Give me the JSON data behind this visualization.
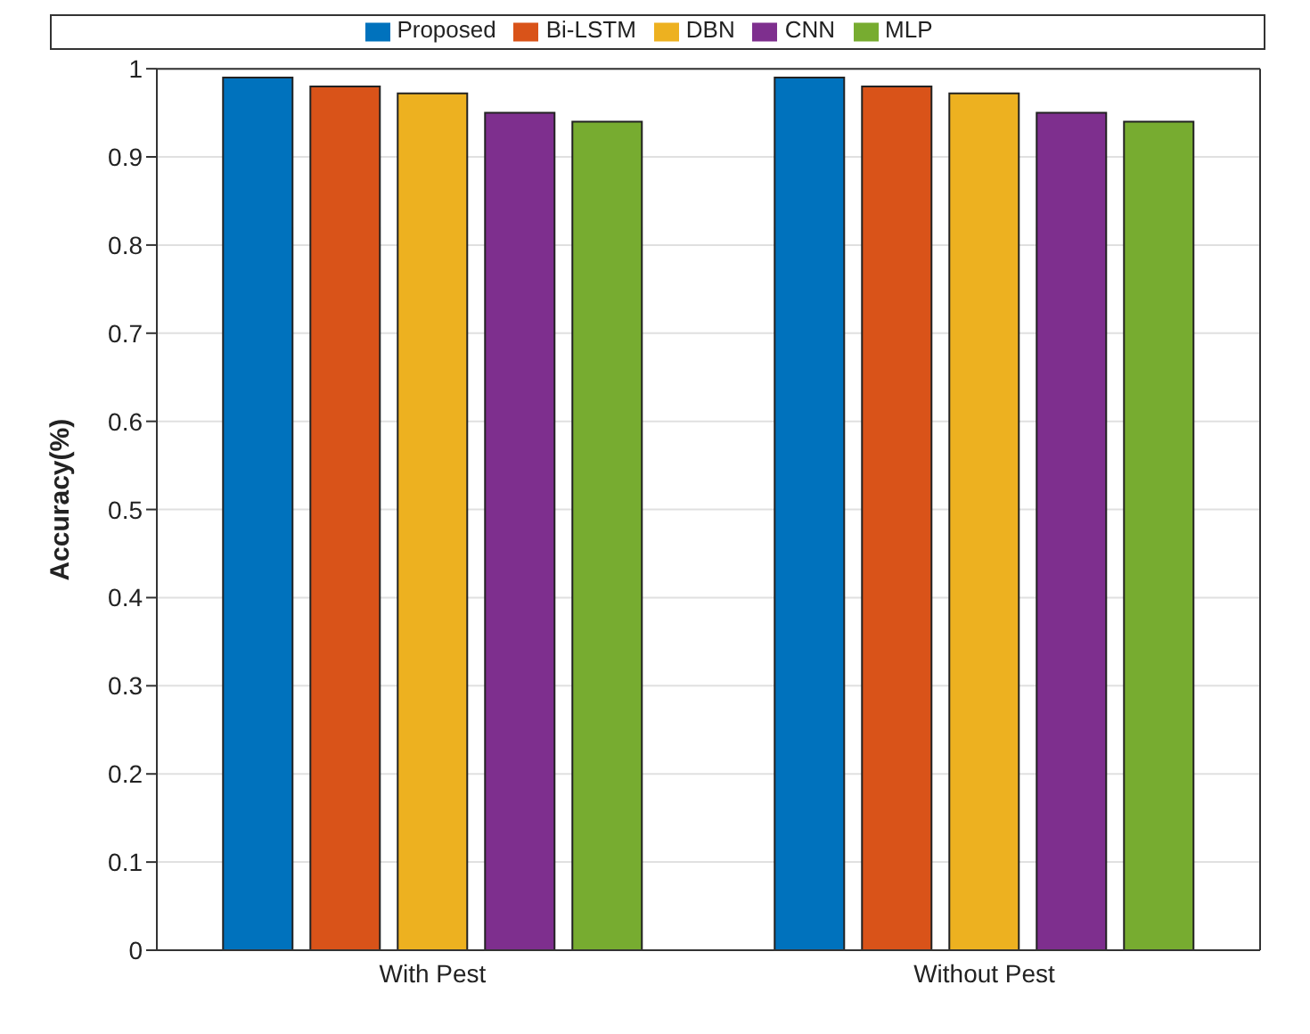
{
  "chart_data": {
    "type": "bar",
    "ylabel": "Accuracy(%)",
    "categories": [
      "With Pest",
      "Without Pest"
    ],
    "series": [
      {
        "name": "Proposed",
        "color": "#0072bd",
        "values": [
          0.99,
          0.99
        ]
      },
      {
        "name": "Bi-LSTM",
        "color": "#d95319",
        "values": [
          0.98,
          0.98
        ]
      },
      {
        "name": "DBN",
        "color": "#edb120",
        "values": [
          0.972,
          0.972
        ]
      },
      {
        "name": "CNN",
        "color": "#7e2f8e",
        "values": [
          0.95,
          0.95
        ]
      },
      {
        "name": "MLP",
        "color": "#77ac30",
        "values": [
          0.94,
          0.94
        ]
      }
    ],
    "ylim": [
      0,
      1
    ],
    "yticks": [
      0,
      0.1,
      0.2,
      0.3,
      0.4,
      0.5,
      0.6,
      0.7,
      0.8,
      0.9,
      1
    ],
    "grid": "y",
    "legend": "top"
  }
}
